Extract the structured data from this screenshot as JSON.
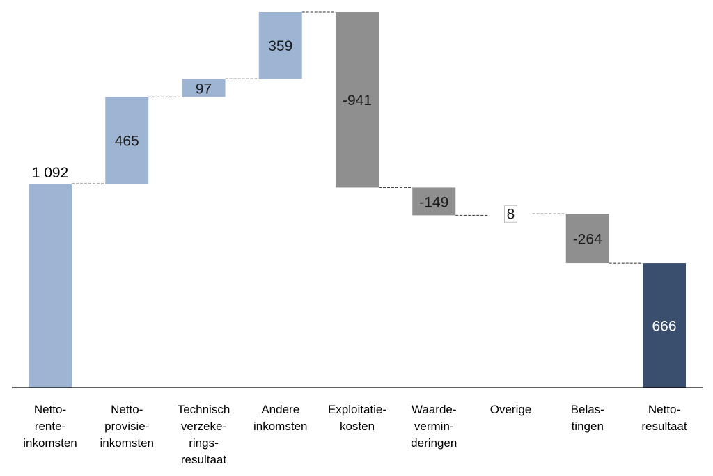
{
  "chart_data": {
    "type": "waterfall",
    "title": "",
    "xlabel": "",
    "ylabel": "",
    "ylim": [
      0,
      1550
    ],
    "grid": false,
    "categories": [
      [
        "Netto-",
        "rente-",
        "inkomsten"
      ],
      [
        "Netto-",
        "provisie-",
        "inkomsten"
      ],
      [
        "Technisch",
        "verzeke-",
        "rings-",
        "resultaat"
      ],
      [
        "Andere",
        "inkomsten"
      ],
      [
        "Exploitatie-",
        "kosten"
      ],
      [
        "Waarde-",
        "vermin-",
        "deringen"
      ],
      [
        "Overige"
      ],
      [
        "Belas-",
        "tingen"
      ],
      [
        "Netto-",
        "resultaat"
      ]
    ],
    "values": [
      1092,
      465,
      97,
      359,
      -941,
      -149,
      8,
      -264,
      666
    ],
    "labels": [
      "1 092",
      "465",
      "97",
      "359",
      "-941",
      "-149",
      "8",
      "-264",
      "666"
    ],
    "kinds": [
      "total",
      "increase",
      "increase",
      "increase",
      "decrease",
      "decrease",
      "increase",
      "decrease",
      "total"
    ],
    "colors": {
      "increase": "#9eb4d3",
      "decrease": "#8f8f8f",
      "result": "#3a4e6e",
      "small": "#ffffff",
      "connector": "#333333",
      "axis": "#000000",
      "label_dark": "#1a1a1a",
      "label_light": "#ffffff"
    }
  }
}
